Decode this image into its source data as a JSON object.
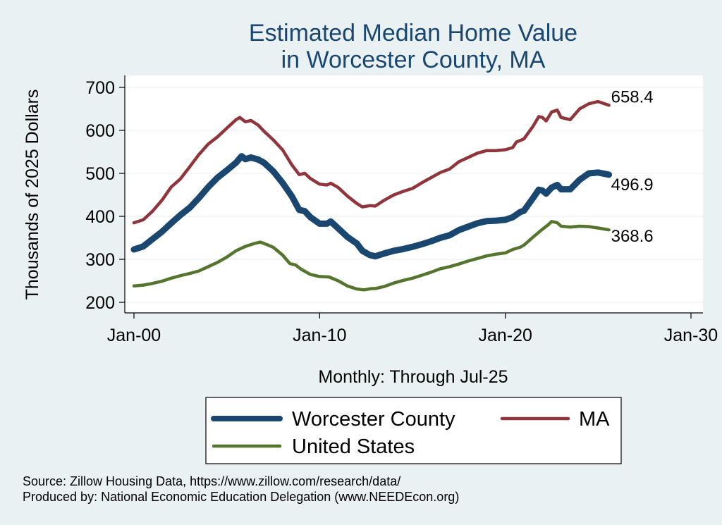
{
  "chart_data": {
    "type": "line",
    "title_lines": [
      "Estimated Median Home Value",
      "in Worcester County, MA"
    ],
    "ylabel": "Thousands of 2025 Dollars",
    "xlabel": "Monthly: Through Jul-25",
    "ylim": [
      200,
      700
    ],
    "yticks": [
      200,
      300,
      400,
      500,
      600,
      700
    ],
    "xlim": [
      2000,
      2030
    ],
    "xticks": [
      {
        "value": 2000,
        "label": "Jan-00"
      },
      {
        "value": 2010,
        "label": "Jan-10"
      },
      {
        "value": 2020,
        "label": "Jan-20"
      },
      {
        "value": 2030,
        "label": "Jan-30"
      }
    ],
    "grid": true,
    "legend_position": "bottom",
    "series": [
      {
        "name": "Worcester County",
        "color": "#1a476f",
        "end_label": "496.9",
        "points": [
          [
            2000.0,
            323
          ],
          [
            2000.5,
            330
          ],
          [
            2001.0,
            347
          ],
          [
            2001.5,
            364
          ],
          [
            2002.0,
            384
          ],
          [
            2002.5,
            403
          ],
          [
            2003.0,
            420
          ],
          [
            2003.5,
            443
          ],
          [
            2004.0,
            468
          ],
          [
            2004.5,
            490
          ],
          [
            2005.0,
            507
          ],
          [
            2005.5,
            525
          ],
          [
            2005.8,
            540
          ],
          [
            2006.0,
            533
          ],
          [
            2006.3,
            537
          ],
          [
            2006.7,
            532
          ],
          [
            2007.0,
            525
          ],
          [
            2007.5,
            505
          ],
          [
            2008.0,
            478
          ],
          [
            2008.5,
            447
          ],
          [
            2008.9,
            415
          ],
          [
            2009.2,
            412
          ],
          [
            2009.5,
            398
          ],
          [
            2010.0,
            383
          ],
          [
            2010.4,
            383
          ],
          [
            2010.6,
            388
          ],
          [
            2011.0,
            372
          ],
          [
            2011.5,
            352
          ],
          [
            2012.0,
            337
          ],
          [
            2012.3,
            320
          ],
          [
            2012.7,
            310
          ],
          [
            2013.0,
            307
          ],
          [
            2013.5,
            314
          ],
          [
            2014.0,
            320
          ],
          [
            2014.5,
            324
          ],
          [
            2015.0,
            329
          ],
          [
            2015.5,
            335
          ],
          [
            2016.0,
            342
          ],
          [
            2016.5,
            350
          ],
          [
            2017.0,
            356
          ],
          [
            2017.5,
            368
          ],
          [
            2018.0,
            376
          ],
          [
            2018.5,
            384
          ],
          [
            2019.0,
            389
          ],
          [
            2019.5,
            390
          ],
          [
            2020.0,
            392
          ],
          [
            2020.4,
            398
          ],
          [
            2020.8,
            410
          ],
          [
            2021.0,
            413
          ],
          [
            2021.5,
            443
          ],
          [
            2021.8,
            462
          ],
          [
            2022.0,
            460
          ],
          [
            2022.2,
            453
          ],
          [
            2022.5,
            467
          ],
          [
            2022.8,
            473
          ],
          [
            2023.0,
            463
          ],
          [
            2023.5,
            463
          ],
          [
            2024.0,
            485
          ],
          [
            2024.5,
            500
          ],
          [
            2025.0,
            502
          ],
          [
            2025.58,
            496.9
          ]
        ]
      },
      {
        "name": "MA",
        "color": "#90353b",
        "end_label": "658.4",
        "points": [
          [
            2000.0,
            385
          ],
          [
            2000.5,
            392
          ],
          [
            2001.0,
            412
          ],
          [
            2001.5,
            437
          ],
          [
            2002.0,
            468
          ],
          [
            2002.5,
            487
          ],
          [
            2003.0,
            515
          ],
          [
            2003.5,
            544
          ],
          [
            2004.0,
            568
          ],
          [
            2004.5,
            585
          ],
          [
            2005.0,
            605
          ],
          [
            2005.5,
            625
          ],
          [
            2005.7,
            630
          ],
          [
            2006.0,
            620
          ],
          [
            2006.3,
            623
          ],
          [
            2006.7,
            612
          ],
          [
            2007.0,
            598
          ],
          [
            2007.5,
            578
          ],
          [
            2008.0,
            555
          ],
          [
            2008.5,
            520
          ],
          [
            2008.9,
            497
          ],
          [
            2009.2,
            500
          ],
          [
            2009.5,
            488
          ],
          [
            2010.0,
            475
          ],
          [
            2010.4,
            473
          ],
          [
            2010.6,
            477
          ],
          [
            2011.0,
            467
          ],
          [
            2011.5,
            447
          ],
          [
            2012.0,
            430
          ],
          [
            2012.3,
            422
          ],
          [
            2012.7,
            425
          ],
          [
            2013.0,
            424
          ],
          [
            2013.5,
            438
          ],
          [
            2014.0,
            450
          ],
          [
            2014.5,
            458
          ],
          [
            2015.0,
            465
          ],
          [
            2015.5,
            478
          ],
          [
            2016.0,
            490
          ],
          [
            2016.5,
            502
          ],
          [
            2017.0,
            510
          ],
          [
            2017.5,
            527
          ],
          [
            2018.0,
            537
          ],
          [
            2018.5,
            547
          ],
          [
            2019.0,
            553
          ],
          [
            2019.5,
            553
          ],
          [
            2020.0,
            555
          ],
          [
            2020.4,
            560
          ],
          [
            2020.6,
            573
          ],
          [
            2021.0,
            580
          ],
          [
            2021.5,
            610
          ],
          [
            2021.8,
            632
          ],
          [
            2022.0,
            630
          ],
          [
            2022.2,
            622
          ],
          [
            2022.5,
            643
          ],
          [
            2022.8,
            647
          ],
          [
            2023.0,
            630
          ],
          [
            2023.5,
            625
          ],
          [
            2024.0,
            650
          ],
          [
            2024.5,
            662
          ],
          [
            2025.0,
            667
          ],
          [
            2025.58,
            658.4
          ]
        ]
      },
      {
        "name": "United States",
        "color": "#55752f",
        "end_label": "368.6",
        "points": [
          [
            2000.0,
            238
          ],
          [
            2000.5,
            240
          ],
          [
            2001.0,
            244
          ],
          [
            2001.5,
            249
          ],
          [
            2002.0,
            256
          ],
          [
            2002.5,
            262
          ],
          [
            2003.0,
            267
          ],
          [
            2003.5,
            273
          ],
          [
            2004.0,
            283
          ],
          [
            2004.5,
            293
          ],
          [
            2005.0,
            305
          ],
          [
            2005.5,
            320
          ],
          [
            2006.0,
            330
          ],
          [
            2006.5,
            337
          ],
          [
            2006.8,
            340
          ],
          [
            2007.0,
            337
          ],
          [
            2007.5,
            328
          ],
          [
            2008.0,
            310
          ],
          [
            2008.4,
            290
          ],
          [
            2008.7,
            287
          ],
          [
            2009.0,
            277
          ],
          [
            2009.5,
            265
          ],
          [
            2010.0,
            260
          ],
          [
            2010.5,
            259
          ],
          [
            2011.0,
            250
          ],
          [
            2011.5,
            238
          ],
          [
            2012.0,
            231
          ],
          [
            2012.4,
            229
          ],
          [
            2012.8,
            232
          ],
          [
            2013.0,
            232
          ],
          [
            2013.5,
            237
          ],
          [
            2014.0,
            245
          ],
          [
            2014.5,
            251
          ],
          [
            2015.0,
            256
          ],
          [
            2015.5,
            263
          ],
          [
            2016.0,
            270
          ],
          [
            2016.5,
            278
          ],
          [
            2017.0,
            283
          ],
          [
            2017.5,
            289
          ],
          [
            2018.0,
            296
          ],
          [
            2018.5,
            302
          ],
          [
            2019.0,
            308
          ],
          [
            2019.5,
            312
          ],
          [
            2020.0,
            315
          ],
          [
            2020.4,
            323
          ],
          [
            2020.8,
            328
          ],
          [
            2021.0,
            333
          ],
          [
            2021.5,
            352
          ],
          [
            2022.0,
            370
          ],
          [
            2022.3,
            380
          ],
          [
            2022.5,
            388
          ],
          [
            2022.8,
            385
          ],
          [
            2023.0,
            377
          ],
          [
            2023.5,
            375
          ],
          [
            2024.0,
            377
          ],
          [
            2024.5,
            376
          ],
          [
            2025.0,
            373
          ],
          [
            2025.58,
            368.6
          ]
        ]
      }
    ]
  },
  "legend": {
    "items": [
      {
        "label": "Worcester County",
        "color": "#1a476f"
      },
      {
        "label": "MA",
        "color": "#90353b"
      },
      {
        "label": "United States",
        "color": "#55752f"
      }
    ]
  },
  "notes": {
    "source": "Source: Zillow Housing Data, https://www.zillow.com/research/data/",
    "produced_by": "Produced by: National Economic Education Delegation (www.NEEDEcon.org)"
  }
}
